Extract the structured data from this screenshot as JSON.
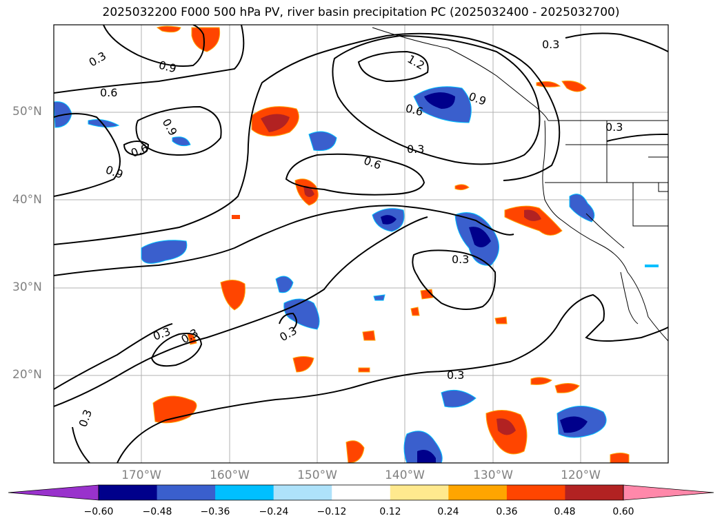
{
  "title": "2025032200 F000 500 hPa PV, river basin precipitation PC (2025032400 - 2025032700)",
  "map": {
    "lat_labels": [
      "50°N",
      "40°N",
      "30°N",
      "20°N"
    ],
    "lon_labels": [
      "170°W",
      "160°W",
      "150°W",
      "140°W",
      "130°W",
      "120°W"
    ],
    "contour_labels": [
      "0.3",
      "0.6",
      "0.9",
      "1.2"
    ]
  },
  "colorbar": {
    "ticks": [
      "−0.60",
      "−0.48",
      "−0.36",
      "−0.24",
      "−0.12",
      "0.12",
      "0.24",
      "0.36",
      "0.48",
      "0.60"
    ],
    "colors": {
      "under": "#9932cc",
      "bins": [
        "#00008b",
        "#3a5fcd",
        "#00bfff",
        "#aee2fa",
        "#ffffff",
        "#ffe98e",
        "#ffa500",
        "#ff4500",
        "#b22222"
      ],
      "over": "#ff88aa"
    }
  },
  "colors": {
    "grid": "#b0b0b0",
    "contour": "#000000",
    "axis_text": "#808080"
  }
}
